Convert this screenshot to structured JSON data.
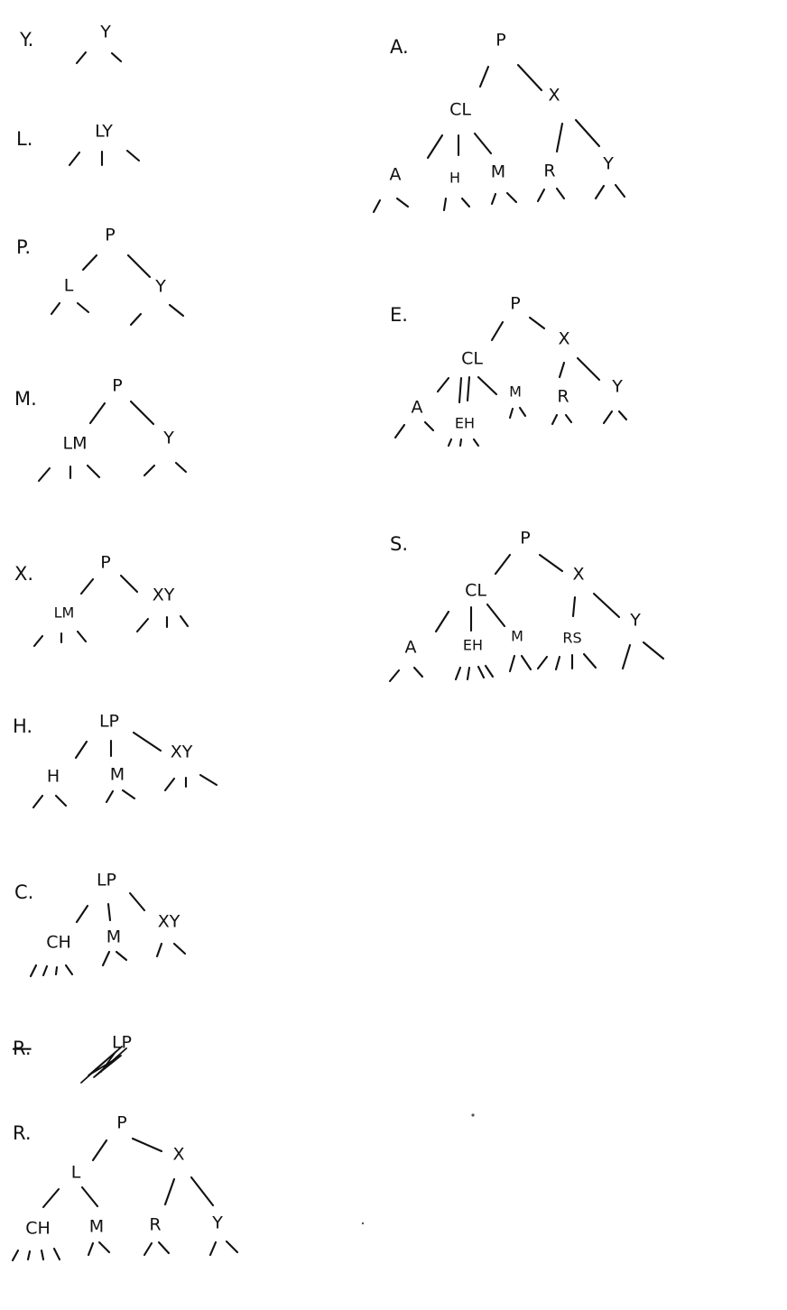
{
  "colors": {
    "ink": "#111111",
    "paper": "#ffffff"
  },
  "steps": [
    {
      "id": "y",
      "label": "Y.",
      "nodes": [
        {
          "key": "Y"
        }
      ]
    },
    {
      "id": "l",
      "label": "L.",
      "nodes": [
        {
          "key": "LY"
        }
      ]
    },
    {
      "id": "p1",
      "label": "P.",
      "nodes": [
        {
          "key": "P"
        },
        {
          "key": "L"
        },
        {
          "key": "Y"
        }
      ]
    },
    {
      "id": "m",
      "label": "M.",
      "nodes": [
        {
          "key": "P"
        },
        {
          "key": "LM"
        },
        {
          "key": "Y"
        }
      ]
    },
    {
      "id": "x",
      "label": "X.",
      "nodes": [
        {
          "key": "P"
        },
        {
          "key": "LM"
        },
        {
          "key": "XY"
        }
      ]
    },
    {
      "id": "h",
      "label": "H.",
      "nodes": [
        {
          "key": "LP"
        },
        {
          "key": "H"
        },
        {
          "key": "M"
        },
        {
          "key": "XY"
        }
      ]
    },
    {
      "id": "c",
      "label": "C.",
      "nodes": [
        {
          "key": "LP"
        },
        {
          "key": "CH"
        },
        {
          "key": "M"
        },
        {
          "key": "XY"
        }
      ]
    },
    {
      "id": "r_struck",
      "label": "R.",
      "nodes": [
        {
          "key": "LP"
        }
      ]
    },
    {
      "id": "r",
      "label": "R.",
      "nodes": [
        {
          "key": "P"
        },
        {
          "key": "L"
        },
        {
          "key": "X"
        },
        {
          "key": "CH"
        },
        {
          "key": "M"
        },
        {
          "key": "R"
        },
        {
          "key": "Y"
        }
      ]
    },
    {
      "id": "a",
      "label": "A.",
      "nodes": [
        {
          "key": "P"
        },
        {
          "key": "CL"
        },
        {
          "key": "X"
        },
        {
          "key": "A"
        },
        {
          "key": "H"
        },
        {
          "key": "M"
        },
        {
          "key": "R"
        },
        {
          "key": "Y"
        }
      ]
    },
    {
      "id": "e",
      "label": "E.",
      "nodes": [
        {
          "key": "P"
        },
        {
          "key": "CL"
        },
        {
          "key": "X"
        },
        {
          "key": "A"
        },
        {
          "key": "EH"
        },
        {
          "key": "M"
        },
        {
          "key": "R"
        },
        {
          "key": "Y"
        }
      ]
    },
    {
      "id": "s",
      "label": "S.",
      "nodes": [
        {
          "key": "P"
        },
        {
          "key": "CL"
        },
        {
          "key": "X"
        },
        {
          "key": "A"
        },
        {
          "key": "EH"
        },
        {
          "key": "M"
        },
        {
          "key": "RS"
        },
        {
          "key": "Y"
        }
      ]
    }
  ]
}
